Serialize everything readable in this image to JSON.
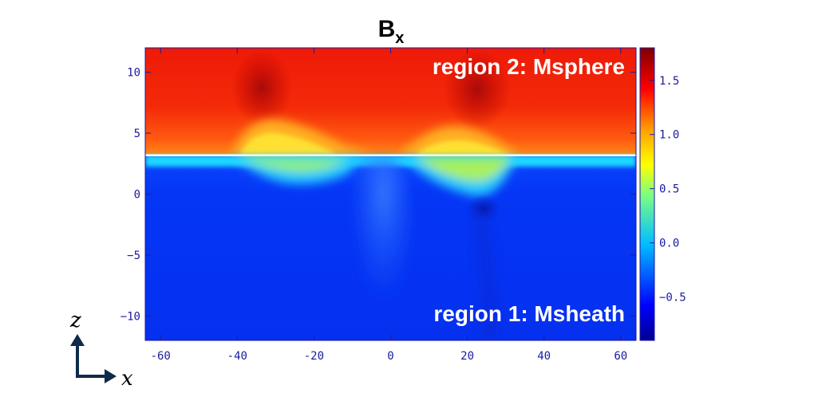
{
  "chart_data": {
    "type": "heatmap",
    "title": "B",
    "title_subscript": "x",
    "xlim": [
      -64,
      64
    ],
    "ylim": [
      -12,
      12
    ],
    "xticks": [
      -60,
      -40,
      -20,
      0,
      20,
      40,
      60
    ],
    "xtick_labels": [
      "-60",
      "-40",
      "-20",
      "0",
      "20",
      "40",
      "60"
    ],
    "yticks": [
      10,
      5,
      0,
      -5,
      -10
    ],
    "ytick_labels": [
      "10",
      "5",
      "0",
      "−5",
      "−10"
    ],
    "colorbar": {
      "range": [
        -0.9,
        1.8
      ],
      "ticks": [
        1.5,
        1.0,
        0.5,
        0.0,
        -0.5
      ],
      "tick_labels": [
        "1.5",
        "1.0",
        "0.5",
        "0.0",
        "−0.5"
      ],
      "colormap": "rainbow"
    },
    "boundary_line_z": 3.0,
    "annotations": [
      {
        "text": "region 2: Msphere",
        "position": "top-right"
      },
      {
        "text": "region 1: Msheath",
        "position": "bottom-right"
      }
    ],
    "field_summary": {
      "region_2_value": 1.35,
      "region_1_value": -0.7,
      "bulges": [
        {
          "x": -30,
          "z_top": 5.8
        },
        {
          "x": 22,
          "z_top": 5.8
        }
      ],
      "dips": [
        {
          "x": -3,
          "z_bottom": 2.6
        },
        {
          "x": 25,
          "z_bottom": -1.8
        }
      ]
    }
  },
  "axes_indicator": {
    "vertical_label": "z",
    "horizontal_label": "x",
    "arrow_color": "#0f2a4a"
  }
}
